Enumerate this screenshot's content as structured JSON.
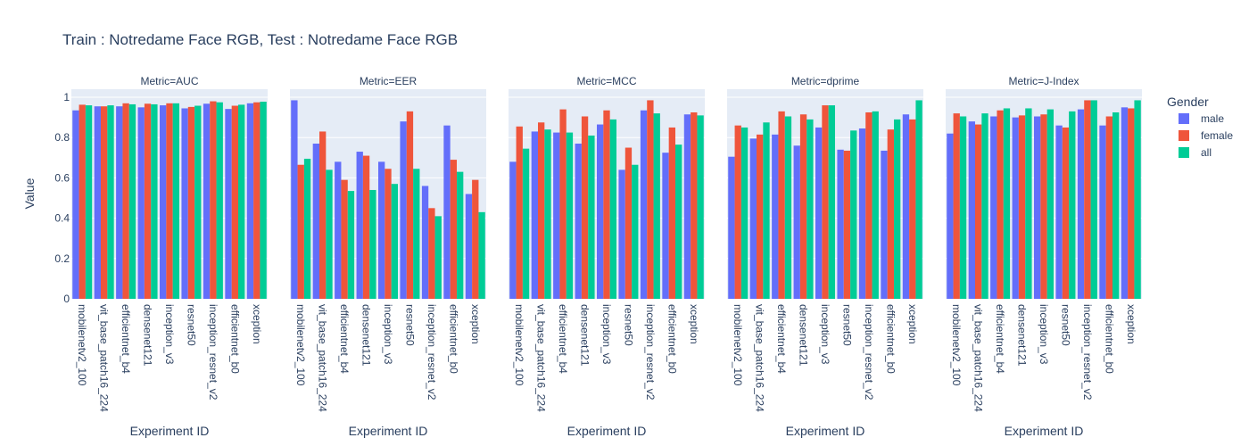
{
  "chart_data": {
    "type": "bar",
    "title": "Train : Notredame Face RGB, Test : Notredame Face RGB",
    "ylabel": "Value",
    "xlabel": "Experiment ID",
    "ylim": [
      0,
      1.04
    ],
    "yticks": [
      0,
      0.2,
      0.4,
      0.6,
      0.8,
      1
    ],
    "legend": {
      "title": "Gender",
      "placement": "right",
      "series": [
        {
          "name": "male",
          "color": "#636efa"
        },
        {
          "name": "female",
          "color": "#ef553b"
        },
        {
          "name": "all",
          "color": "#00cc96"
        }
      ]
    },
    "facets": [
      {
        "title": "Metric=AUC",
        "categories": [
          "mobilenetv2_100",
          "vit_base_patch16_224",
          "efficientnet_b4",
          "densenet121",
          "inception_v3",
          "resnet50",
          "inception_resnet_v2",
          "efficientnet_b0",
          "xception"
        ],
        "series": [
          {
            "name": "male",
            "values": [
              0.935,
              0.955,
              0.955,
              0.95,
              0.96,
              0.945,
              0.968,
              0.942,
              0.97
            ]
          },
          {
            "name": "female",
            "values": [
              0.963,
              0.955,
              0.97,
              0.968,
              0.97,
              0.952,
              0.98,
              0.958,
              0.975
            ]
          },
          {
            "name": "all",
            "values": [
              0.96,
              0.96,
              0.965,
              0.965,
              0.97,
              0.958,
              0.975,
              0.963,
              0.978
            ]
          }
        ]
      },
      {
        "title": "Metric=EER",
        "categories": [
          "mobilenetv2_100",
          "vit_base_patch16_224",
          "efficientnet_b4",
          "densenet121",
          "inception_v3",
          "resnet50",
          "inception_resnet_v2",
          "efficientnet_b0",
          "xception"
        ],
        "series": [
          {
            "name": "male",
            "values": [
              0.985,
              0.77,
              0.68,
              0.73,
              0.68,
              0.88,
              0.56,
              0.86,
              0.52
            ]
          },
          {
            "name": "female",
            "values": [
              0.665,
              0.83,
              0.59,
              0.71,
              0.645,
              0.93,
              0.45,
              0.69,
              0.59
            ]
          },
          {
            "name": "all",
            "values": [
              0.695,
              0.64,
              0.535,
              0.54,
              0.57,
              0.645,
              0.41,
              0.63,
              0.43
            ]
          }
        ]
      },
      {
        "title": "Metric=MCC",
        "categories": [
          "mobilenetv2_100",
          "vit_base_patch16_224",
          "efficientnet_b4",
          "densenet121",
          "inception_v3",
          "resnet50",
          "inception_resnet_v2",
          "efficientnet_b0",
          "xception"
        ],
        "series": [
          {
            "name": "male",
            "values": [
              0.68,
              0.83,
              0.825,
              0.77,
              0.865,
              0.64,
              0.935,
              0.725,
              0.915
            ]
          },
          {
            "name": "female",
            "values": [
              0.855,
              0.875,
              0.94,
              0.905,
              0.935,
              0.75,
              0.985,
              0.85,
              0.925
            ]
          },
          {
            "name": "all",
            "values": [
              0.745,
              0.84,
              0.825,
              0.81,
              0.89,
              0.665,
              0.92,
              0.765,
              0.91
            ]
          }
        ]
      },
      {
        "title": "Metric=dprime",
        "categories": [
          "mobilenetv2_100",
          "vit_base_patch16_224",
          "efficientnet_b4",
          "densenet121",
          "inception_v3",
          "resnet50",
          "inception_resnet_v2",
          "efficientnet_b0",
          "xception"
        ],
        "series": [
          {
            "name": "male",
            "values": [
              0.705,
              0.795,
              0.815,
              0.76,
              0.85,
              0.74,
              0.845,
              0.735,
              0.915
            ]
          },
          {
            "name": "female",
            "values": [
              0.86,
              0.815,
              0.93,
              0.915,
              0.96,
              0.735,
              0.925,
              0.84,
              0.89
            ]
          },
          {
            "name": "all",
            "values": [
              0.85,
              0.875,
              0.905,
              0.89,
              0.96,
              0.835,
              0.93,
              0.89,
              0.985
            ]
          }
        ]
      },
      {
        "title": "Metric=J-Index",
        "categories": [
          "mobilenetv2_100",
          "vit_base_patch16_224",
          "efficientnet_b4",
          "densenet121",
          "inception_v3",
          "resnet50",
          "inception_resnet_v2",
          "efficientnet_b0",
          "xception"
        ],
        "series": [
          {
            "name": "male",
            "values": [
              0.82,
              0.88,
              0.905,
              0.9,
              0.905,
              0.86,
              0.94,
              0.86,
              0.95
            ]
          },
          {
            "name": "female",
            "values": [
              0.92,
              0.865,
              0.935,
              0.91,
              0.915,
              0.85,
              0.985,
              0.905,
              0.945
            ]
          },
          {
            "name": "all",
            "values": [
              0.905,
              0.92,
              0.945,
              0.945,
              0.94,
              0.93,
              0.985,
              0.925,
              0.985
            ]
          }
        ]
      }
    ]
  }
}
